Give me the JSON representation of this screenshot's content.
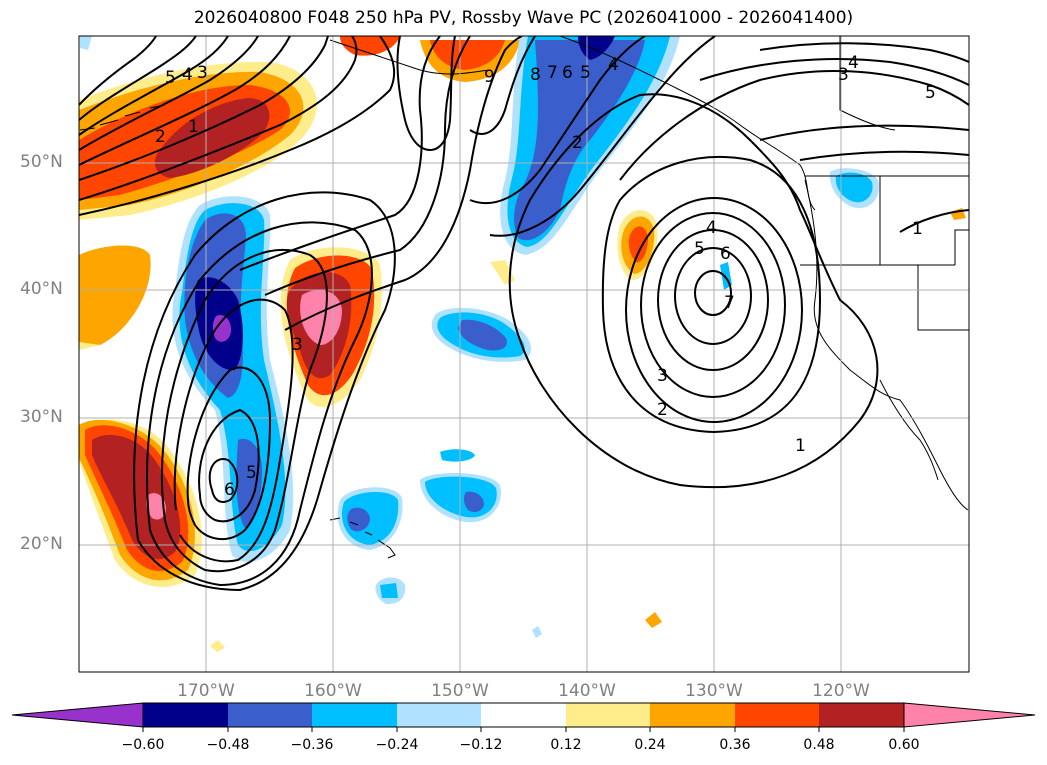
{
  "title": "2026040800 F048 250 hPa PV, Rossby Wave PC (2026041000 - 2026041400)",
  "map": {
    "lat_labels": [
      "50°N",
      "40°N",
      "30°N",
      "20°N"
    ],
    "lon_labels": [
      "170°W",
      "160°W",
      "150°W",
      "140°W",
      "130°W",
      "120°W"
    ],
    "contour_labels": {
      "low_center": [
        "7",
        "6",
        "5",
        "4",
        "3",
        "2",
        "1"
      ],
      "trough_south": [
        "6",
        "5",
        "3"
      ],
      "northwest": [
        "5",
        "4",
        "3",
        "2",
        "1"
      ],
      "north": [
        "9",
        "8",
        "7",
        "6",
        "5",
        "4",
        "2"
      ],
      "northeast": [
        "4",
        "3",
        "5"
      ],
      "east": [
        "1"
      ]
    }
  },
  "colorbar": {
    "tick_labels": [
      "−0.60",
      "−0.48",
      "−0.36",
      "−0.24",
      "−0.12",
      "0.12",
      "0.24",
      "0.36",
      "0.48",
      "0.60"
    ],
    "colors": [
      "#9932cc",
      "#00008b",
      "#3a5fcd",
      "#00bfff",
      "#b0e2ff",
      "#ffffff",
      "#ffec8b",
      "#ffa500",
      "#ff4500",
      "#b22222",
      "#ff82ab"
    ]
  }
}
